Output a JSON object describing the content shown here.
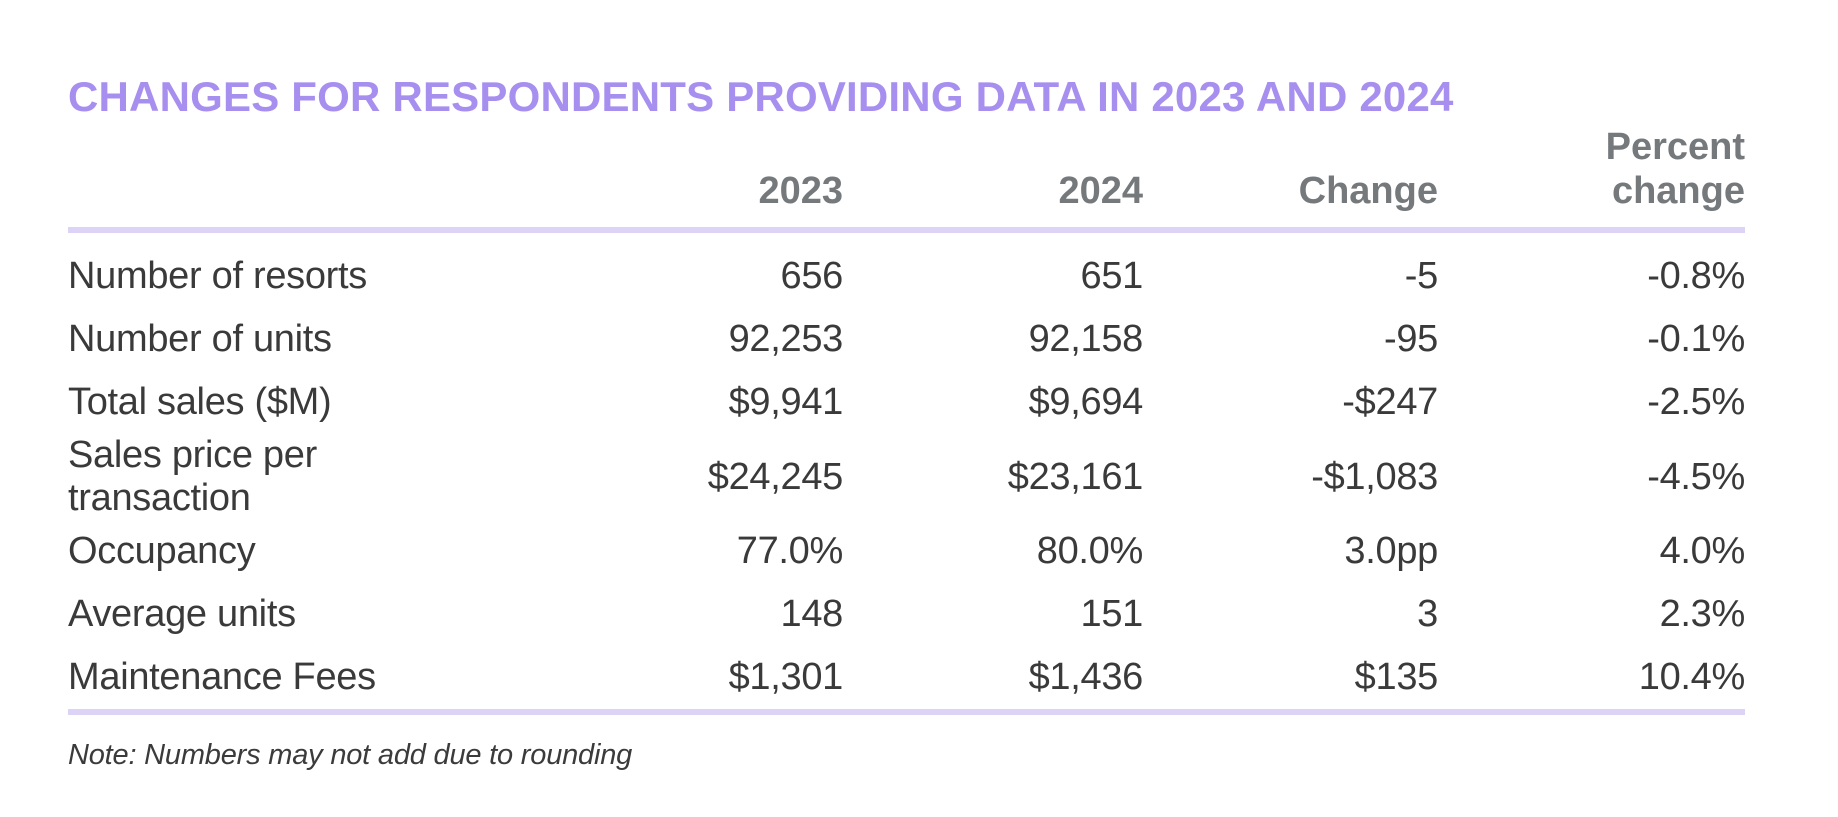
{
  "title": "CHANGES FOR RESPONDENTS PROVIDING DATA IN 2023 AND 2024",
  "columns": [
    "2023",
    "2024",
    "Change",
    "Percent\nchange"
  ],
  "rows": [
    {
      "label": "Number of resorts",
      "y2023": "656",
      "y2024": "651",
      "change": "-5",
      "pct": "-0.8%"
    },
    {
      "label": "Number of units",
      "y2023": "92,253",
      "y2024": "92,158",
      "change": "-95",
      "pct": "-0.1%"
    },
    {
      "label": "Total sales ($M)",
      "y2023": "$9,941",
      "y2024": "$9,694",
      "change": "-$247",
      "pct": "-2.5%"
    },
    {
      "label": "Sales price per transaction",
      "y2023": "$24,245",
      "y2024": "$23,161",
      "change": "-$1,083",
      "pct": "-4.5%"
    },
    {
      "label": "Occupancy",
      "y2023": "77.0%",
      "y2024": "80.0%",
      "change": "3.0pp",
      "pct": "4.0%"
    },
    {
      "label": "Average units",
      "y2023": "148",
      "y2024": "151",
      "change": "3",
      "pct": "2.3%"
    },
    {
      "label": "Maintenance Fees",
      "y2023": "$1,301",
      "y2024": "$1,436",
      "change": "$135",
      "pct": "10.4%"
    }
  ],
  "note": "Note: Numbers may not add due to rounding",
  "colors": {
    "title_purple": "#A78FEF",
    "divider_purple": "#DDD3F6",
    "header_gray": "#75797C",
    "body_text": "#3A3A3A"
  },
  "chart_data": {
    "type": "table",
    "title": "CHANGES FOR RESPONDENTS PROVIDING DATA IN 2023 AND 2024",
    "columns": [
      "2023",
      "2024",
      "Change",
      "Percent change"
    ],
    "row_labels": [
      "Number of resorts",
      "Number of units",
      "Total sales ($M)",
      "Sales price per transaction",
      "Occupancy",
      "Average units",
      "Maintenance Fees"
    ],
    "series": [
      {
        "name": "2023",
        "values": [
          656,
          92253,
          9941,
          24245,
          77.0,
          148,
          1301
        ]
      },
      {
        "name": "2024",
        "values": [
          651,
          92158,
          9694,
          23161,
          80.0,
          151,
          1436
        ]
      },
      {
        "name": "Change",
        "values": [
          -5,
          -95,
          -247,
          -1083,
          3.0,
          3,
          135
        ]
      },
      {
        "name": "Percent change",
        "values": [
          -0.8,
          -0.1,
          -2.5,
          -4.5,
          4.0,
          2.3,
          10.4
        ]
      }
    ],
    "note": "Note: Numbers may not add due to rounding"
  }
}
